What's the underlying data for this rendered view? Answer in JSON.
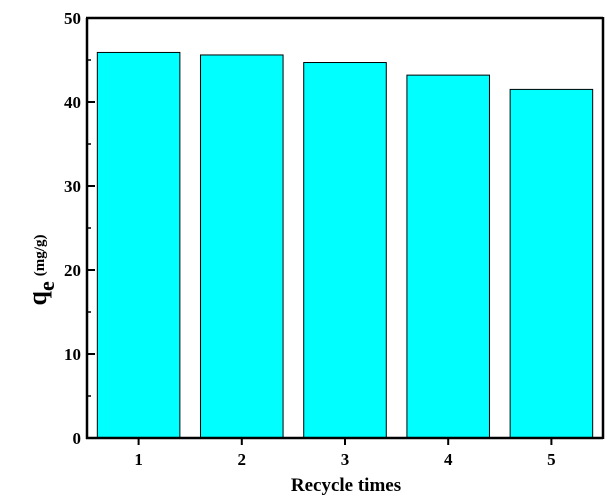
{
  "chart_data": {
    "type": "bar",
    "categories": [
      "1",
      "2",
      "3",
      "4",
      "5"
    ],
    "values": [
      45.9,
      45.6,
      44.7,
      43.2,
      41.5
    ],
    "xlabel": "Recycle times",
    "ylabel": {
      "main": "q",
      "subscript": "e",
      "unit": "(mg/g)"
    },
    "ylim": [
      0,
      50
    ],
    "yticks": [
      0,
      10,
      20,
      30,
      40,
      50
    ],
    "grid": false,
    "legend": "none",
    "colors": {
      "bar_fill": "#00FFFF",
      "bar_stroke": "#000000",
      "axis": "#000000"
    }
  }
}
